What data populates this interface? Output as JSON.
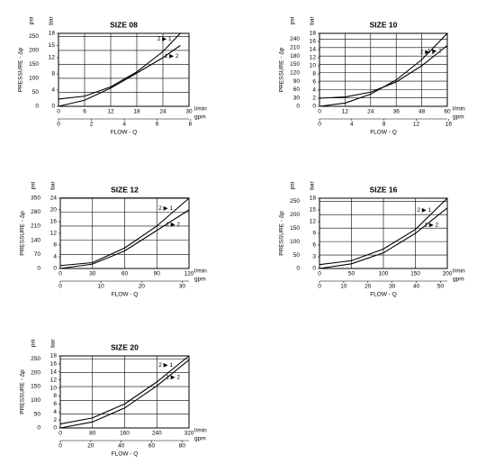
{
  "chart_data": [
    {
      "type": "line",
      "title": "SIZE 08",
      "x_label": "FLOW - Q",
      "y_label": "PRESSURE - Δp",
      "x_unit": "l/min",
      "x2_unit": "gpm",
      "y_unit": "bar",
      "y2_unit": "psi",
      "x": [
        0,
        6,
        12,
        18,
        24,
        28
      ],
      "series": [
        {
          "name": "2 ▶ 1",
          "color": "#000000",
          "values": [
            1.8,
            2.5,
            4.8,
            8.5,
            13.5,
            18
          ]
        },
        {
          "name": "1 ▶ 2",
          "color": "#000000",
          "values": [
            0,
            1.5,
            4.5,
            8.2,
            12,
            15
          ]
        }
      ],
      "xlim": [
        0,
        30
      ],
      "xticks": [
        0,
        6,
        12,
        18,
        24,
        30
      ],
      "x2lim": [
        0,
        7.93
      ],
      "x2ticks": [
        0,
        2,
        4,
        6,
        8
      ],
      "ylim": [
        0,
        18
      ],
      "yticks": [
        0,
        4,
        8,
        12,
        15,
        18
      ],
      "y2lim": [
        0,
        261
      ],
      "y2ticks": [
        0,
        50,
        100,
        150,
        200,
        250
      ],
      "grid": true
    },
    {
      "type": "line",
      "title": "SIZE 10",
      "x_label": "FLOW - Q",
      "y_label": "PRESSURE - Δp",
      "x_unit": "l/min",
      "x2_unit": "gpm",
      "y_unit": "bar",
      "y2_unit": "psi",
      "x": [
        0,
        12,
        24,
        36,
        48,
        60
      ],
      "series": [
        {
          "name": "2 ▶ 1",
          "color": "#000000",
          "values": [
            2,
            2.3,
            3.5,
            6,
            10,
            15
          ]
        },
        {
          "name": "1 ▶ 2",
          "color": "#000000",
          "values": [
            0,
            0.8,
            3,
            6.5,
            11.5,
            18
          ]
        }
      ],
      "xlim": [
        0,
        60
      ],
      "xticks": [
        0,
        12,
        24,
        36,
        48,
        60
      ],
      "x2lim": [
        0,
        15.85
      ],
      "x2ticks": [
        0,
        4,
        8,
        12,
        16
      ],
      "ylim": [
        0,
        18
      ],
      "yticks": [
        0,
        2,
        4,
        6,
        8,
        10,
        12,
        14,
        16,
        18
      ],
      "y2lim": [
        0,
        261
      ],
      "y2ticks": [
        0,
        30,
        60,
        90,
        120,
        150,
        180,
        210,
        240
      ],
      "grid": true
    },
    {
      "type": "line",
      "title": "SIZE 12",
      "x_label": "FLOW - Q",
      "y_label": "PRESSURE - Δp",
      "x_unit": "l/min",
      "x2_unit": "gpm",
      "y_unit": "bar",
      "y2_unit": "psi",
      "x": [
        0,
        30,
        60,
        90,
        120
      ],
      "series": [
        {
          "name": "2 ▶ 1",
          "color": "#000000",
          "values": [
            1,
            2,
            7,
            14.5,
            24
          ]
        },
        {
          "name": "1 ▶ 2",
          "color": "#000000",
          "values": [
            0,
            1.5,
            6,
            13,
            20
          ]
        }
      ],
      "xlim": [
        0,
        120
      ],
      "xticks": [
        0,
        30,
        60,
        90,
        120
      ],
      "x2lim": [
        0,
        31.7
      ],
      "x2ticks": [
        0,
        10,
        20,
        30
      ],
      "ylim": [
        0,
        24
      ],
      "yticks": [
        0,
        4,
        8,
        12,
        16,
        20,
        24
      ],
      "y2lim": [
        0,
        348
      ],
      "y2ticks": [
        0,
        70,
        140,
        210,
        280,
        350
      ],
      "grid": true
    },
    {
      "type": "line",
      "title": "SIZE 16",
      "x_label": "FLOW - Q",
      "y_label": "PRESSURE - Δp",
      "x_unit": "l/min",
      "x2_unit": "gpm",
      "y_unit": "bar",
      "y2_unit": "psi",
      "x": [
        0,
        50,
        100,
        150,
        200
      ],
      "series": [
        {
          "name": "2 ▶ 1",
          "color": "#000000",
          "values": [
            1,
            2,
            5,
            10,
            18
          ]
        },
        {
          "name": "1 ▶ 2",
          "color": "#000000",
          "values": [
            0,
            1.2,
            4,
            9,
            15.5
          ]
        }
      ],
      "xlim": [
        0,
        200
      ],
      "xticks": [
        0,
        50,
        100,
        150,
        200
      ],
      "x2lim": [
        0,
        52.8
      ],
      "x2ticks": [
        0,
        10,
        20,
        30,
        40,
        50
      ],
      "ylim": [
        0,
        18
      ],
      "yticks": [
        0,
        3,
        6,
        9,
        12,
        15,
        18
      ],
      "y2lim": [
        0,
        261
      ],
      "y2ticks": [
        0,
        50,
        100,
        150,
        200,
        250
      ],
      "grid": true
    },
    {
      "type": "line",
      "title": "SIZE 20",
      "x_label": "FLOW - Q",
      "y_label": "PRESSURE - Δp",
      "x_unit": "l/min",
      "x2_unit": "gpm",
      "y_unit": "bar",
      "y2_unit": "psi",
      "x": [
        0,
        80,
        160,
        240,
        320
      ],
      "series": [
        {
          "name": "2 ▶ 1",
          "color": "#000000",
          "values": [
            1,
            2.5,
            6,
            11.5,
            18
          ]
        },
        {
          "name": "1 ▶ 2",
          "color": "#000000",
          "values": [
            0,
            1.5,
            5,
            10.5,
            17
          ]
        }
      ],
      "xlim": [
        0,
        320
      ],
      "xticks": [
        0,
        80,
        160,
        240,
        320
      ],
      "x2lim": [
        0,
        84.5
      ],
      "x2ticks": [
        0,
        20,
        40,
        60,
        80
      ],
      "ylim": [
        0,
        18
      ],
      "yticks": [
        0,
        2,
        4,
        6,
        8,
        10,
        12,
        14,
        16,
        18
      ],
      "y2lim": [
        0,
        261
      ],
      "y2ticks": [
        0,
        50,
        100,
        150,
        200,
        250
      ],
      "grid": true
    }
  ]
}
